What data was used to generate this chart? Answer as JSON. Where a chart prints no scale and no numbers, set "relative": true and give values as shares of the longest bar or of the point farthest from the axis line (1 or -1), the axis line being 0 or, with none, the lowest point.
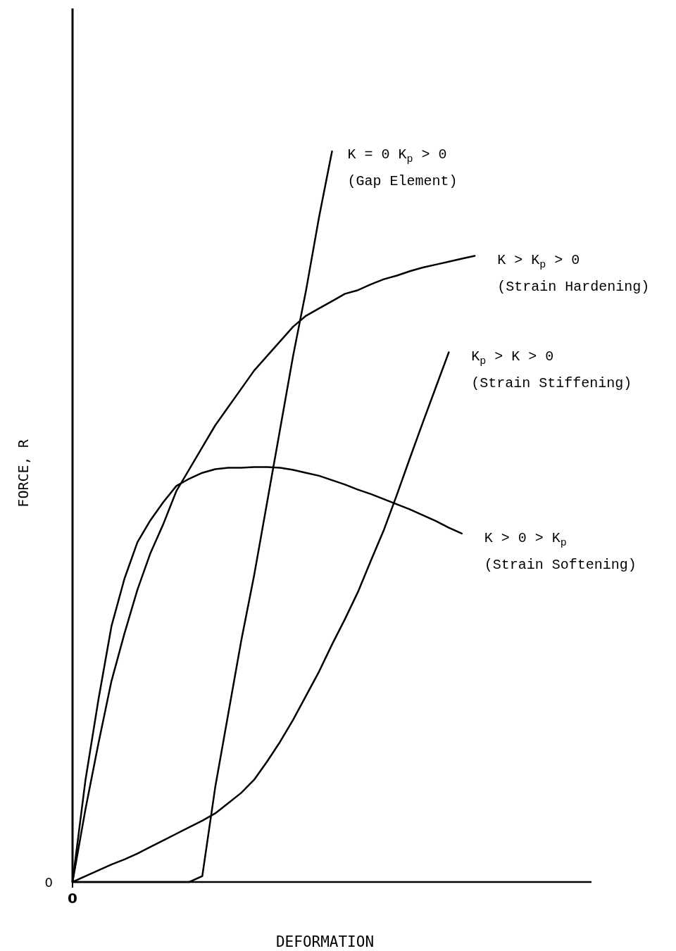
{
  "chart_data": {
    "type": "line",
    "relative": true,
    "xlabel": "DEFORMATION",
    "ylabel": "FORCE, R",
    "line_style": "solid",
    "categories": [
      null,
      null,
      null,
      null,
      null,
      null,
      null,
      null,
      null,
      null,
      null,
      null,
      null,
      null,
      null,
      null,
      null,
      null,
      null,
      null,
      null,
      null,
      null,
      null,
      null,
      null,
      null,
      null,
      null,
      null,
      null,
      null,
      null,
      null,
      null,
      null,
      null,
      null,
      null,
      null,
      null
    ],
    "annotations": [
      "(Gap Element)",
      "(Strain Hardening)",
      "(Strain Stiffening)",
      "(Strain Softening)",
      "0",
      "0"
    ],
    "series": [
      {
        "name": "K = 0  K$_{p}$ > 0",
        "color": "#000000",
        "values": [
          0,
          0,
          0,
          0,
          0,
          0,
          0,
          0,
          0,
          0,
          0.008,
          0.13,
          0.23,
          0.33,
          0.42,
          0.52,
          0.62,
          0.72,
          0.81,
          0.91,
          1,
          null,
          null,
          null,
          null,
          null,
          null,
          null,
          null,
          null,
          null,
          null,
          null,
          null,
          null,
          null,
          null,
          null,
          null,
          null,
          null
        ]
      },
      {
        "name": "K > K$_{p}$ > 0",
        "color": "#000000",
        "values": [
          0,
          0.1,
          0.19,
          0.275,
          0.34,
          0.4,
          0.45,
          0.49,
          0.535,
          0.565,
          0.595,
          0.625,
          0.65,
          0.675,
          0.7,
          0.72,
          0.74,
          0.76,
          0.775,
          0.785,
          0.795,
          0.805,
          0.81,
          0.818,
          0.825,
          0.83,
          0.836,
          0.841,
          0.845,
          0.849,
          0.853,
          0.857,
          null,
          null,
          null,
          null,
          null,
          null,
          null,
          null,
          null
        ]
      },
      {
        "name": "K$_{p}$ > K > 0",
        "color": "#000000",
        "values": [
          0,
          0.008,
          0.016,
          0.024,
          0.031,
          0.039,
          0.048,
          0.057,
          0.066,
          0.075,
          0.084,
          0.094,
          0.108,
          0.122,
          0.14,
          0.165,
          0.192,
          0.222,
          0.255,
          0.288,
          0.325,
          0.36,
          0.397,
          0.44,
          0.482,
          0.53,
          0.58,
          0.629,
          0.677,
          0.725,
          null,
          null,
          null,
          null,
          null,
          null,
          null,
          null,
          null,
          null,
          null
        ]
      },
      {
        "name": "K > 0 > K$_{p}$",
        "color": "#000000",
        "values": [
          0,
          0.14,
          0.25,
          0.35,
          0.415,
          0.465,
          0.495,
          0.52,
          0.542,
          0.552,
          0.56,
          0.565,
          0.567,
          0.567,
          0.568,
          0.568,
          0.567,
          0.564,
          0.56,
          0.556,
          0.55,
          0.544,
          0.537,
          0.531,
          0.524,
          0.517,
          0.51,
          0.502,
          0.494,
          0.485,
          0.477,
          null,
          null,
          null,
          null,
          null,
          null,
          null,
          null,
          null,
          null
        ]
      }
    ]
  }
}
